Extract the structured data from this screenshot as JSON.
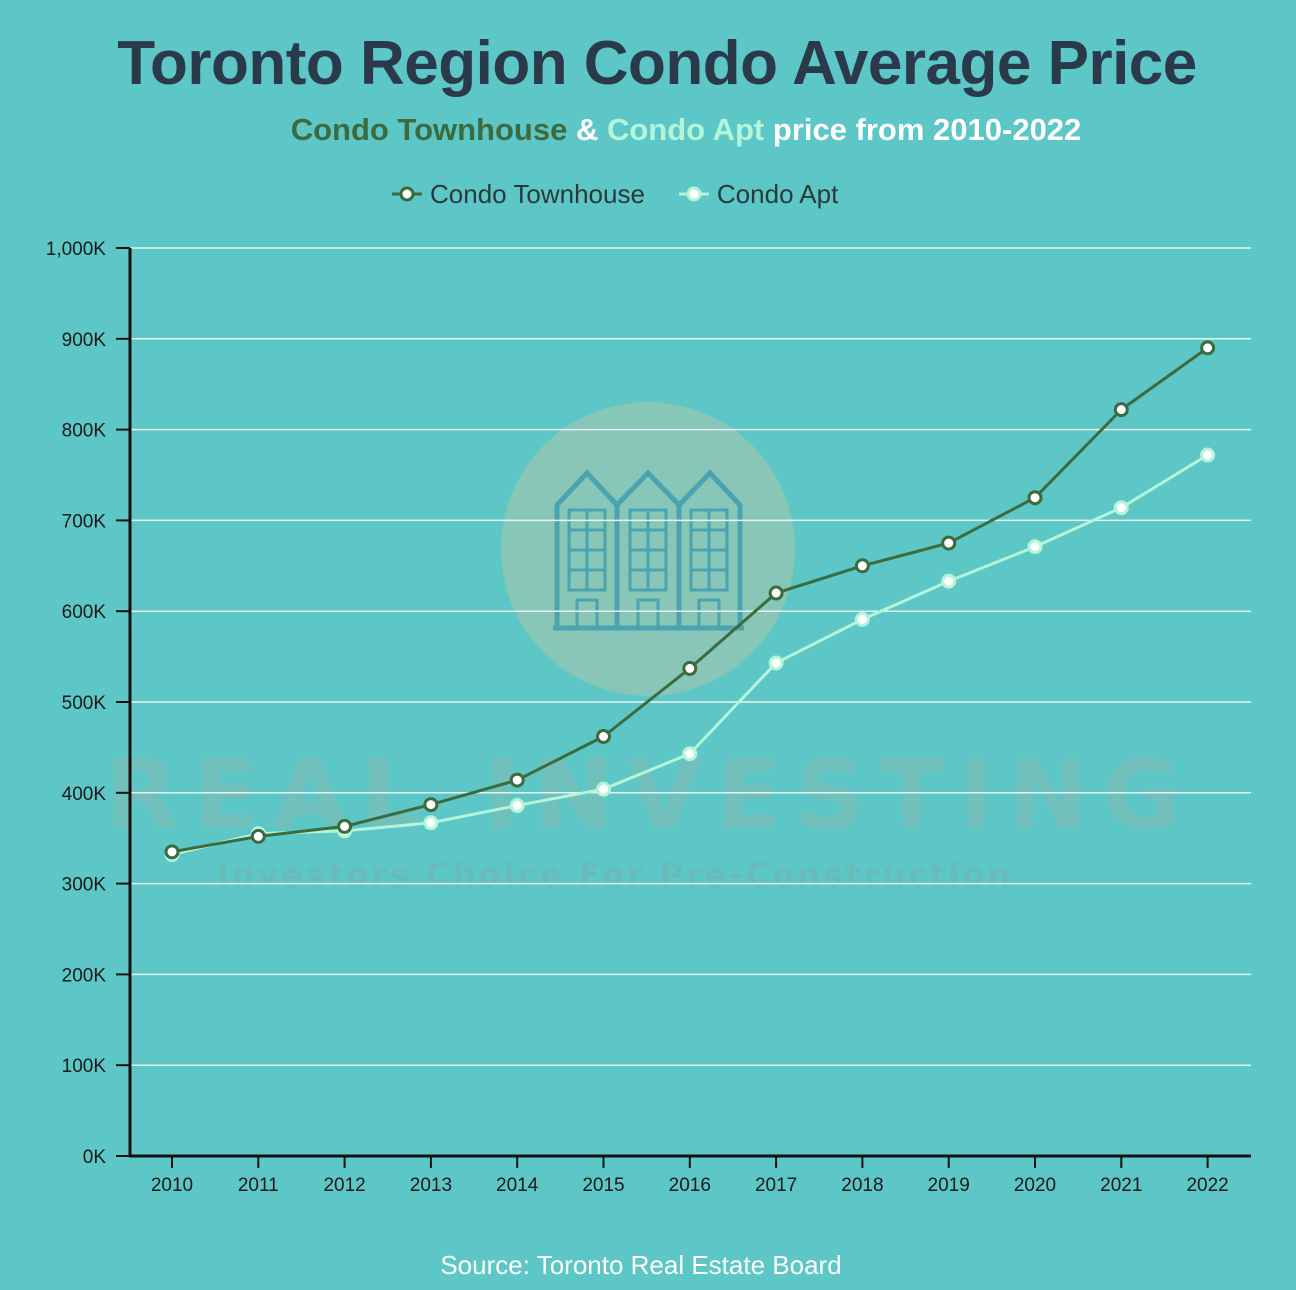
{
  "title_parts": {
    "main": "Toronto Region Condo Average Price",
    "sub_series1": "Condo Townhouse",
    "sub_amp": " & ",
    "sub_series2": "Condo Apt",
    "sub_rest": " price from 2010-2022"
  },
  "watermark": {
    "brand": "REAL INVESTING",
    "tagline": "Investors Choice For Pre-Construction",
    "icon": "townhouse-building-icon"
  },
  "source": "Source: Toronto Real Estate Board",
  "colors": {
    "background": "#5dc6c6",
    "townhouse": "#3b6b3e",
    "apt": "#b3f5d8",
    "grid": "#e6f5f3",
    "axis": "#111111"
  },
  "chart_data": {
    "type": "line",
    "title": "Toronto Region Condo Average Price",
    "subtitle": "Condo Townhouse & Condo Apt price from 2010-2022",
    "x": [
      "2010",
      "2011",
      "2012",
      "2013",
      "2014",
      "2015",
      "2016",
      "2017",
      "2018",
      "2019",
      "2020",
      "2021",
      "2022"
    ],
    "series": [
      {
        "name": "Condo Townhouse",
        "values": [
          335,
          352,
          363,
          387,
          414,
          462,
          537,
          620,
          650,
          675,
          725,
          822,
          890
        ]
      },
      {
        "name": "Condo Apt",
        "values": [
          332,
          355,
          358,
          367,
          386,
          404,
          443,
          543,
          591,
          633,
          671,
          714,
          772
        ]
      }
    ],
    "value_unit": "K",
    "ylim": [
      0,
      1000
    ],
    "yticks": [
      "0K",
      "100K",
      "200K",
      "300K",
      "400K",
      "500K",
      "600K",
      "700K",
      "800K",
      "900K",
      "1,000K"
    ],
    "xlabel": "",
    "ylabel": "",
    "legend": "top-center",
    "grid": true
  }
}
